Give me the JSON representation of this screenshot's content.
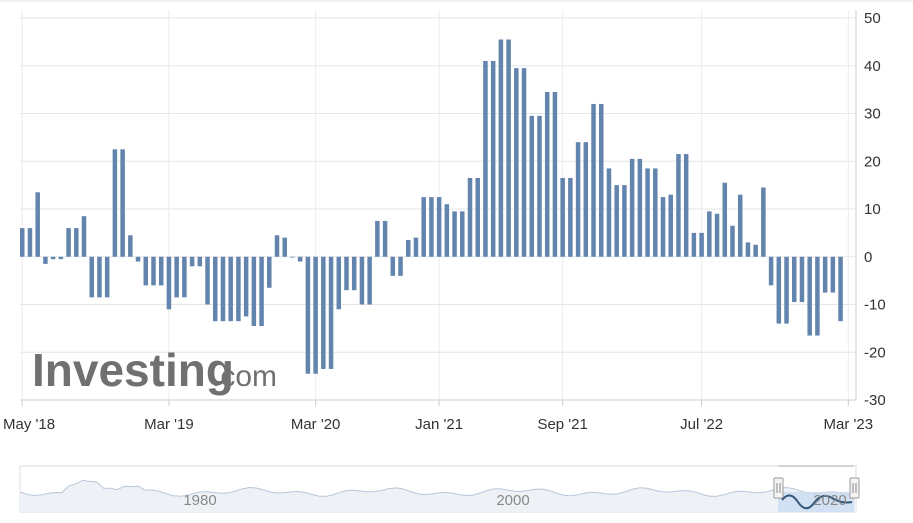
{
  "chart_data": {
    "type": "bar",
    "series_color": "#6384ad",
    "grid": true,
    "y_axis_position": "right",
    "ylim": [
      -30,
      50
    ],
    "y_ticks": [
      50,
      40,
      30,
      20,
      10,
      0,
      -10,
      -20,
      -30
    ],
    "x_tick_labels": [
      "May '18",
      "Mar '19",
      "Mar '20",
      "Jan '21",
      "Sep '21",
      "Jul '22",
      "Mar '23"
    ],
    "values": [
      6,
      6,
      13.5,
      -1.5,
      -0.5,
      -0.5,
      6,
      6,
      8.5,
      -8.5,
      -8.5,
      -8.5,
      22.5,
      22.5,
      4.5,
      -1,
      -6,
      -6,
      -6,
      -11,
      -8.5,
      -8.5,
      -2,
      -2,
      -10,
      -13.5,
      -13.5,
      -13.5,
      -13.5,
      -12.5,
      -14.5,
      -14.5,
      -6.5,
      4.5,
      4,
      0,
      -1,
      -24.5,
      -24.5,
      -23.5,
      -23.5,
      -11,
      -7,
      -7,
      -10,
      -10,
      7.5,
      7.5,
      -4,
      -4,
      3.5,
      4,
      12.5,
      12.5,
      12.5,
      11,
      9.5,
      9.5,
      16.5,
      16.5,
      41,
      41,
      45.5,
      45.5,
      39.5,
      39.5,
      29.5,
      29.5,
      34.5,
      34.5,
      16.5,
      16.5,
      24,
      24,
      32,
      32,
      18.5,
      15,
      15,
      20.5,
      20.5,
      18.5,
      18.5,
      12.5,
      13,
      21.5,
      21.5,
      5,
      5,
      9.5,
      9,
      15.5,
      6.5,
      13,
      3,
      2.5,
      14.5,
      -6,
      -14,
      -14,
      -9.5,
      -9.5,
      -16.5,
      -16.5,
      -7.5,
      -7.5,
      -13.5
    ]
  },
  "logo": {
    "main": "Investing",
    "suffix": ".com"
  },
  "navigator": {
    "labels": [
      "1980",
      "2000",
      "2020"
    ],
    "handle_glyph": "||"
  }
}
